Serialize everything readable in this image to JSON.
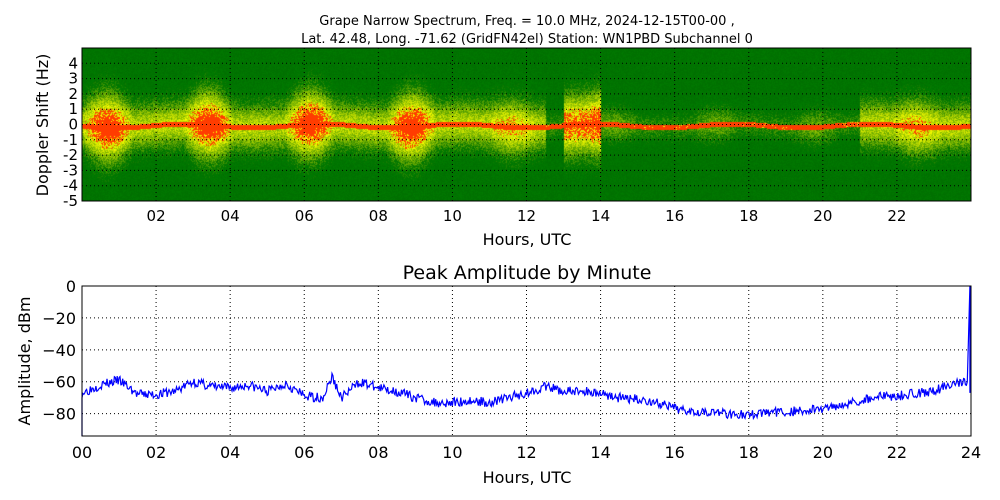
{
  "title_line1": "Grape Narrow Spectrum, Freq. = 10.0 MHz, 2024-12-15T00-00 ,",
  "title_line2": "Lat.  42.48, Long. -71.62 (GridFN42el) Station: WN1PBD Subchannel 0",
  "chart_data": [
    {
      "type": "heatmap",
      "title": "",
      "xlabel": "Hours, UTC",
      "ylabel": "Doppler Shift (Hz)",
      "xlim": [
        0,
        24
      ],
      "ylim": [
        -5,
        5
      ],
      "xticks": [
        "02",
        "04",
        "06",
        "08",
        "10",
        "12",
        "14",
        "16",
        "18",
        "20",
        "22"
      ],
      "yticks": [
        "4",
        "3",
        "2",
        "1",
        "0",
        "-1",
        "-2",
        "-3",
        "-4",
        "-5"
      ],
      "grid": true,
      "colors": {
        "background": "#007000",
        "mid": "#b0d000",
        "high": "#ffff00",
        "peak": "#ff3000"
      }
    },
    {
      "type": "line",
      "title": "Peak Amplitude by Minute",
      "xlabel": "Hours, UTC",
      "ylabel": "Amplitude, dBm",
      "xlim": [
        0,
        24
      ],
      "ylim": [
        -94,
        0
      ],
      "xticks": [
        "00",
        "02",
        "04",
        "06",
        "08",
        "10",
        "12",
        "14",
        "16",
        "18",
        "20",
        "22",
        "24"
      ],
      "yticks": [
        "0",
        "−20",
        "−40",
        "−60",
        "−80"
      ],
      "grid": true,
      "color": "#0000ff",
      "x": [
        0,
        0.5,
        1,
        1.5,
        2,
        2.5,
        3,
        3.5,
        4,
        4.5,
        5,
        5.5,
        6,
        6.5,
        6.75,
        7,
        7.5,
        8,
        8.5,
        9,
        9.5,
        10,
        10.5,
        11,
        11.5,
        12,
        12.5,
        13,
        13.5,
        14,
        14.5,
        15,
        15.5,
        16,
        16.5,
        17,
        17.5,
        18,
        18.5,
        19,
        19.5,
        20,
        20.5,
        21,
        21.5,
        22,
        22.5,
        23,
        23.5,
        23.9,
        23.97
      ],
      "y": [
        -67,
        -62,
        -59,
        -68,
        -68,
        -66,
        -60,
        -63,
        -64,
        -62,
        -66,
        -61,
        -69,
        -70,
        -57,
        -70,
        -60,
        -64,
        -66,
        -70,
        -73,
        -73,
        -72,
        -73,
        -70,
        -67,
        -63,
        -66,
        -66,
        -67,
        -70,
        -71,
        -73,
        -77,
        -78,
        -79,
        -80,
        -81,
        -79,
        -79,
        -78,
        -77,
        -74,
        -72,
        -69,
        -69,
        -67,
        -66,
        -61,
        -60,
        0
      ]
    }
  ]
}
